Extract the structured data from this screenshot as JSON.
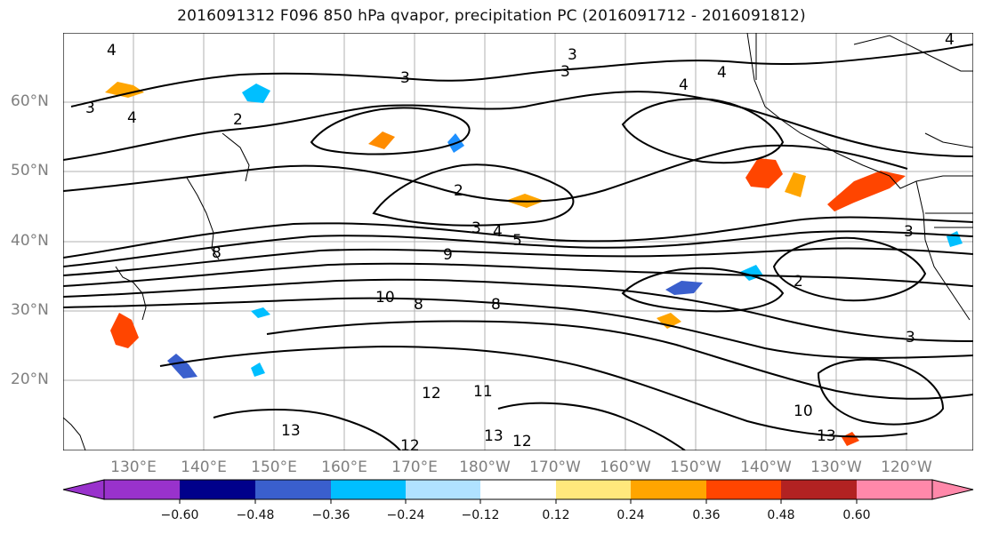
{
  "title": "2016091312 F096 850 hPa qvapor, precipitation PC (2016091712 - 2016091812)",
  "map": {
    "lat_labels": [
      "60°N",
      "50°N",
      "40°N",
      "30°N",
      "20°N"
    ],
    "lon_labels": [
      "130°E",
      "140°E",
      "150°E",
      "160°E",
      "170°E",
      "180°W",
      "170°W",
      "160°W",
      "150°W",
      "140°W",
      "130°W",
      "120°W"
    ],
    "contour_labels": [
      "4",
      "3",
      "4",
      "2",
      "3",
      "3",
      "3",
      "4",
      "4",
      "2",
      "3",
      "4",
      "5",
      "9",
      "8",
      "10",
      "8",
      "8",
      "12",
      "11",
      "13",
      "13",
      "12",
      "3",
      "10",
      "13",
      "2",
      "4",
      "3",
      "12"
    ],
    "precip_positive_color": "#ff8c00",
    "precip_negative_color": "#1e90ff",
    "grid": true
  },
  "colorbar": {
    "ticks": [
      "−0.60",
      "−0.48",
      "−0.36",
      "−0.24",
      "−0.12",
      "0.12",
      "0.24",
      "0.36",
      "0.48",
      "0.60"
    ],
    "colors": [
      "#9932cc",
      "#00008b",
      "#3a5fcd",
      "#00bfff",
      "#b0e2ff",
      "#ffffff",
      "#ffe87c",
      "#ffa500",
      "#ff4500",
      "#b22222",
      "#ff88aa"
    ]
  }
}
